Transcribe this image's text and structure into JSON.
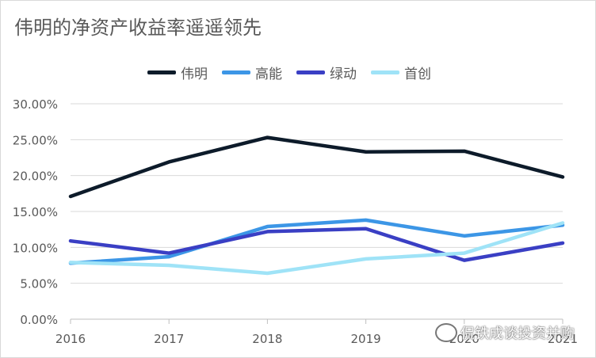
{
  "chart_data": {
    "type": "line",
    "title": "伟明的净资产收益率遥遥领先",
    "x": [
      "2016",
      "2017",
      "2018",
      "2019",
      "2020",
      "2021"
    ],
    "ylim": [
      0,
      30
    ],
    "yticks": [
      "0.00%",
      "5.00%",
      "10.00%",
      "15.00%",
      "20.00%",
      "25.00%",
      "30.00%"
    ],
    "grid": true,
    "legend_position": "top",
    "series": [
      {
        "name": "伟明",
        "color": "#0d1b2a",
        "values": [
          17.1,
          21.9,
          25.3,
          23.3,
          23.4,
          19.8
        ]
      },
      {
        "name": "高能",
        "color": "#3c96e6",
        "values": [
          7.8,
          8.7,
          12.9,
          13.8,
          11.6,
          13.1
        ]
      },
      {
        "name": "绿动",
        "color": "#3a3fc4",
        "values": [
          10.9,
          9.2,
          12.2,
          12.6,
          8.2,
          10.6
        ]
      },
      {
        "name": "首创",
        "color": "#9fe3f7",
        "values": [
          7.9,
          7.5,
          6.4,
          8.4,
          9.2,
          13.4
        ]
      }
    ]
  },
  "watermark": {
    "text": "侃铁成谈投资并购"
  }
}
